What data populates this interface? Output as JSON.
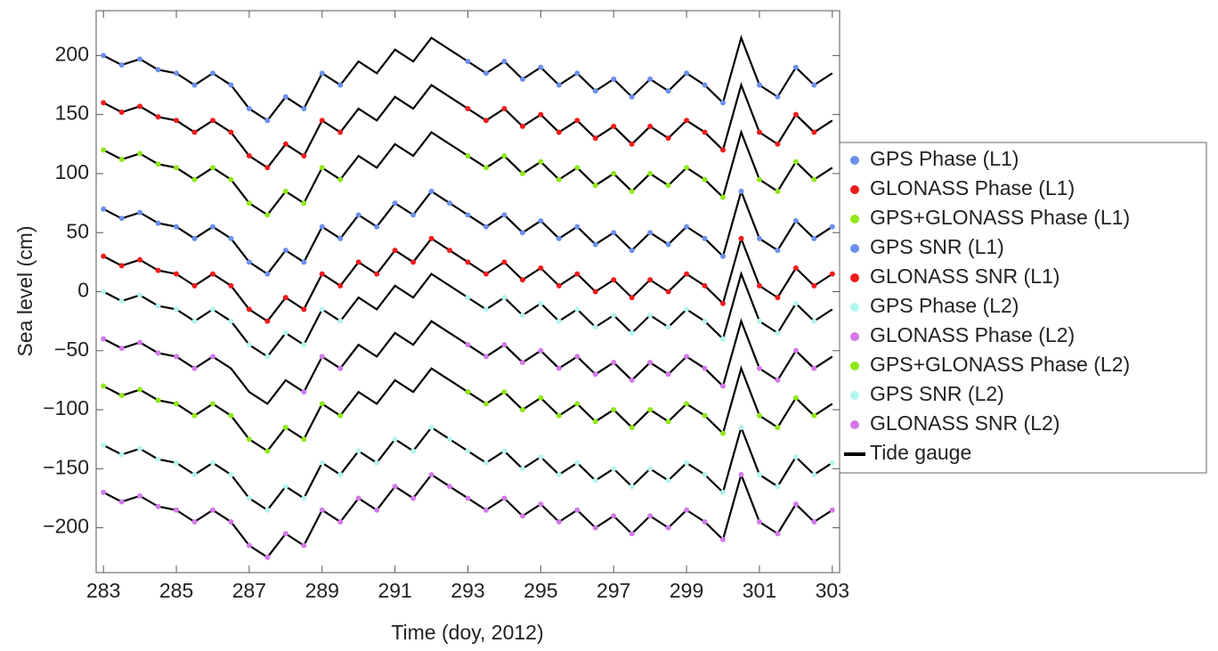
{
  "chart_data": {
    "type": "scatter",
    "ylabel": "Sea level (cm)",
    "xlabel": "Time (doy, 2012)",
    "xlim": [
      282.8,
      303.2
    ],
    "xticks": [
      283,
      285,
      287,
      289,
      291,
      293,
      295,
      297,
      299,
      301,
      303
    ],
    "ylim": [
      -238,
      238
    ],
    "yticks": [
      {
        "value": -200,
        "label": "−200"
      },
      {
        "value": -150,
        "label": "−150"
      },
      {
        "value": -100,
        "label": "−100"
      },
      {
        "value": -50,
        "label": "−50"
      },
      0,
      50,
      100,
      150,
      200
    ],
    "legend": "right",
    "x": [
      283,
      283.5,
      284,
      284.5,
      285,
      285.5,
      286,
      286.5,
      287,
      287.5,
      288,
      288.5,
      289,
      289.5,
      290,
      290.5,
      291,
      291.5,
      292,
      292.5,
      293,
      293.5,
      294,
      294.5,
      295,
      295.5,
      296,
      296.5,
      297,
      297.5,
      298,
      298.5,
      299,
      299.5,
      300,
      300.5,
      301,
      301.5,
      302,
      302.5,
      303
    ],
    "series": [
      {
        "name": "GPS Phase (L1)",
        "color": "#6b8fea",
        "values": [
          200,
          192,
          197,
          188,
          185,
          175,
          185,
          175,
          155,
          145,
          165,
          155,
          185,
          175,
          null,
          null,
          null,
          null,
          null,
          null,
          195,
          185,
          195,
          180,
          190,
          175,
          185,
          170,
          180,
          165,
          180,
          170,
          185,
          175,
          160,
          null,
          175,
          165,
          190,
          175,
          null
        ]
      },
      {
        "name": "GLONASS Phase (L1)",
        "color": "#ee1c1c",
        "values": [
          160,
          152,
          157,
          148,
          145,
          135,
          145,
          135,
          115,
          105,
          125,
          115,
          145,
          135,
          null,
          null,
          null,
          null,
          null,
          null,
          155,
          145,
          155,
          140,
          150,
          135,
          145,
          130,
          140,
          125,
          140,
          130,
          145,
          135,
          120,
          null,
          135,
          125,
          150,
          135,
          null
        ]
      },
      {
        "name": "GPS+GLONASS Phase (L1)",
        "color": "#8fe81a",
        "values": [
          120,
          112,
          117,
          108,
          105,
          95,
          105,
          95,
          75,
          65,
          85,
          75,
          105,
          95,
          null,
          null,
          null,
          null,
          null,
          null,
          115,
          105,
          115,
          100,
          110,
          95,
          105,
          90,
          100,
          85,
          100,
          90,
          105,
          95,
          80,
          null,
          95,
          85,
          110,
          95,
          null
        ]
      },
      {
        "name": "GPS SNR (L1)",
        "color": "#6b8fea",
        "values": [
          70,
          62,
          67,
          58,
          55,
          45,
          55,
          45,
          25,
          15,
          35,
          25,
          55,
          45,
          65,
          55,
          75,
          65,
          85,
          75,
          65,
          55,
          65,
          50,
          60,
          45,
          55,
          40,
          50,
          35,
          50,
          40,
          55,
          45,
          30,
          85,
          45,
          35,
          60,
          45,
          55
        ]
      },
      {
        "name": "GLONASS SNR (L1)",
        "color": "#ee1c1c",
        "values": [
          30,
          22,
          27,
          18,
          15,
          5,
          15,
          5,
          -15,
          -25,
          -5,
          -15,
          15,
          5,
          25,
          15,
          35,
          25,
          45,
          35,
          25,
          15,
          25,
          10,
          20,
          5,
          15,
          0,
          10,
          -5,
          10,
          0,
          15,
          5,
          -10,
          45,
          5,
          -5,
          20,
          5,
          15
        ]
      },
      {
        "name": "GPS Phase (L2)",
        "color": "#b3f5ee",
        "values": [
          0,
          -8,
          -3,
          -12,
          -15,
          -25,
          -15,
          -25,
          -45,
          -55,
          -35,
          -45,
          -15,
          -25,
          null,
          null,
          null,
          null,
          null,
          null,
          -5,
          -15,
          -5,
          -20,
          -10,
          -25,
          -15,
          -30,
          -20,
          -35,
          -20,
          -30,
          -15,
          -25,
          -40,
          null,
          -25,
          -35,
          -10,
          -25,
          null
        ]
      },
      {
        "name": "GLONASS Phase (L2)",
        "color": "#d27ae8",
        "values": [
          -40,
          -48,
          -43,
          -52,
          -55,
          -65,
          -55,
          null,
          null,
          null,
          null,
          -85,
          -55,
          -65,
          null,
          null,
          null,
          null,
          null,
          null,
          -45,
          -55,
          -45,
          -60,
          -50,
          -65,
          -55,
          -70,
          -60,
          -75,
          -60,
          -70,
          -55,
          -65,
          -80,
          null,
          -65,
          -75,
          -50,
          -65,
          null
        ]
      },
      {
        "name": "GPS+GLONASS Phase (L2)",
        "color": "#8fe81a",
        "values": [
          -80,
          -88,
          -83,
          -92,
          -95,
          -105,
          -95,
          -105,
          -125,
          -135,
          -115,
          -125,
          -95,
          -105,
          null,
          null,
          null,
          null,
          null,
          null,
          -85,
          -95,
          -85,
          -100,
          -90,
          -105,
          -95,
          -110,
          -100,
          -115,
          -100,
          -110,
          -95,
          -105,
          -120,
          null,
          -105,
          -115,
          -90,
          -105,
          null
        ]
      },
      {
        "name": "GPS SNR (L2)",
        "color": "#b3f5ee",
        "values": [
          -130,
          -138,
          -133,
          -142,
          -145,
          -155,
          -145,
          -155,
          -175,
          -185,
          -165,
          -175,
          -145,
          -155,
          -135,
          -145,
          -125,
          -135,
          -115,
          -125,
          -135,
          -145,
          -135,
          -150,
          -140,
          -155,
          -145,
          -160,
          -150,
          -165,
          -150,
          -160,
          -145,
          -155,
          -170,
          -115,
          -155,
          -165,
          -140,
          -155,
          -145
        ]
      },
      {
        "name": "GLONASS SNR (L2)",
        "color": "#d27ae8",
        "values": [
          -170,
          -178,
          -173,
          -182,
          -185,
          -195,
          -185,
          -195,
          -215,
          -225,
          -205,
          -215,
          -185,
          -195,
          -175,
          -185,
          -165,
          -175,
          -155,
          -165,
          -175,
          -185,
          -175,
          -190,
          -180,
          -195,
          -185,
          -200,
          -190,
          -205,
          -190,
          -200,
          -185,
          -195,
          -210,
          -155,
          -195,
          -205,
          -180,
          -195,
          -185
        ]
      }
    ],
    "tide_gauge": {
      "name": "Tide gauge",
      "color": "#000000",
      "lines": [
        [
          200,
          192,
          197,
          188,
          185,
          175,
          185,
          175,
          155,
          145,
          165,
          155,
          185,
          175,
          195,
          185,
          205,
          195,
          215,
          205,
          195,
          185,
          195,
          180,
          190,
          175,
          185,
          170,
          180,
          165,
          180,
          170,
          185,
          175,
          160,
          215,
          175,
          165,
          190,
          175,
          185
        ],
        [
          160,
          152,
          157,
          148,
          145,
          135,
          145,
          135,
          115,
          105,
          125,
          115,
          145,
          135,
          155,
          145,
          165,
          155,
          175,
          165,
          155,
          145,
          155,
          140,
          150,
          135,
          145,
          130,
          140,
          125,
          140,
          130,
          145,
          135,
          120,
          175,
          135,
          125,
          150,
          135,
          145
        ],
        [
          120,
          112,
          117,
          108,
          105,
          95,
          105,
          95,
          75,
          65,
          85,
          75,
          105,
          95,
          115,
          105,
          125,
          115,
          135,
          125,
          115,
          105,
          115,
          100,
          110,
          95,
          105,
          90,
          100,
          85,
          100,
          90,
          105,
          95,
          80,
          135,
          95,
          85,
          110,
          95,
          105
        ],
        [
          70,
          62,
          67,
          58,
          55,
          45,
          55,
          45,
          25,
          15,
          35,
          25,
          55,
          45,
          65,
          55,
          75,
          65,
          85,
          75,
          65,
          55,
          65,
          50,
          60,
          45,
          55,
          40,
          50,
          35,
          50,
          40,
          55,
          45,
          30,
          85,
          45,
          35,
          60,
          45,
          55
        ],
        [
          30,
          22,
          27,
          18,
          15,
          5,
          15,
          5,
          -15,
          -25,
          -5,
          -15,
          15,
          5,
          25,
          15,
          35,
          25,
          45,
          35,
          25,
          15,
          25,
          10,
          20,
          5,
          15,
          0,
          10,
          -5,
          10,
          0,
          15,
          5,
          -10,
          45,
          5,
          -5,
          20,
          5,
          15
        ],
        [
          0,
          -8,
          -3,
          -12,
          -15,
          -25,
          -15,
          -25,
          -45,
          -55,
          -35,
          -45,
          -15,
          -25,
          -5,
          -15,
          5,
          -5,
          15,
          5,
          -5,
          -15,
          -5,
          -20,
          -10,
          -25,
          -15,
          -30,
          -20,
          -35,
          -20,
          -30,
          -15,
          -25,
          -40,
          15,
          -25,
          -35,
          -10,
          -25,
          -15
        ],
        [
          -40,
          -48,
          -43,
          -52,
          -55,
          -65,
          -55,
          -65,
          -85,
          -95,
          -75,
          -85,
          -55,
          -65,
          -45,
          -55,
          -35,
          -45,
          -25,
          -35,
          -45,
          -55,
          -45,
          -60,
          -50,
          -65,
          -55,
          -70,
          -60,
          -75,
          -60,
          -70,
          -55,
          -65,
          -80,
          -25,
          -65,
          -75,
          -50,
          -65,
          -55
        ],
        [
          -80,
          -88,
          -83,
          -92,
          -95,
          -105,
          -95,
          -105,
          -125,
          -135,
          -115,
          -125,
          -95,
          -105,
          -85,
          -95,
          -75,
          -85,
          -65,
          -75,
          -85,
          -95,
          -85,
          -100,
          -90,
          -105,
          -95,
          -110,
          -100,
          -115,
          -100,
          -110,
          -95,
          -105,
          -120,
          -65,
          -105,
          -115,
          -90,
          -105,
          -95
        ],
        [
          -130,
          -138,
          -133,
          -142,
          -145,
          -155,
          -145,
          -155,
          -175,
          -185,
          -165,
          -175,
          -145,
          -155,
          -135,
          -145,
          -125,
          -135,
          -115,
          -125,
          -135,
          -145,
          -135,
          -150,
          -140,
          -155,
          -145,
          -160,
          -150,
          -165,
          -150,
          -160,
          -145,
          -155,
          -170,
          -115,
          -155,
          -165,
          -140,
          -155,
          -145
        ],
        [
          -170,
          -178,
          -173,
          -182,
          -185,
          -195,
          -185,
          -195,
          -215,
          -225,
          -205,
          -215,
          -185,
          -195,
          -175,
          -185,
          -165,
          -175,
          -155,
          -165,
          -175,
          -185,
          -175,
          -190,
          -180,
          -195,
          -185,
          -200,
          -190,
          -205,
          -190,
          -200,
          -185,
          -195,
          -210,
          -155,
          -195,
          -205,
          -180,
          -195,
          -185
        ]
      ]
    }
  }
}
